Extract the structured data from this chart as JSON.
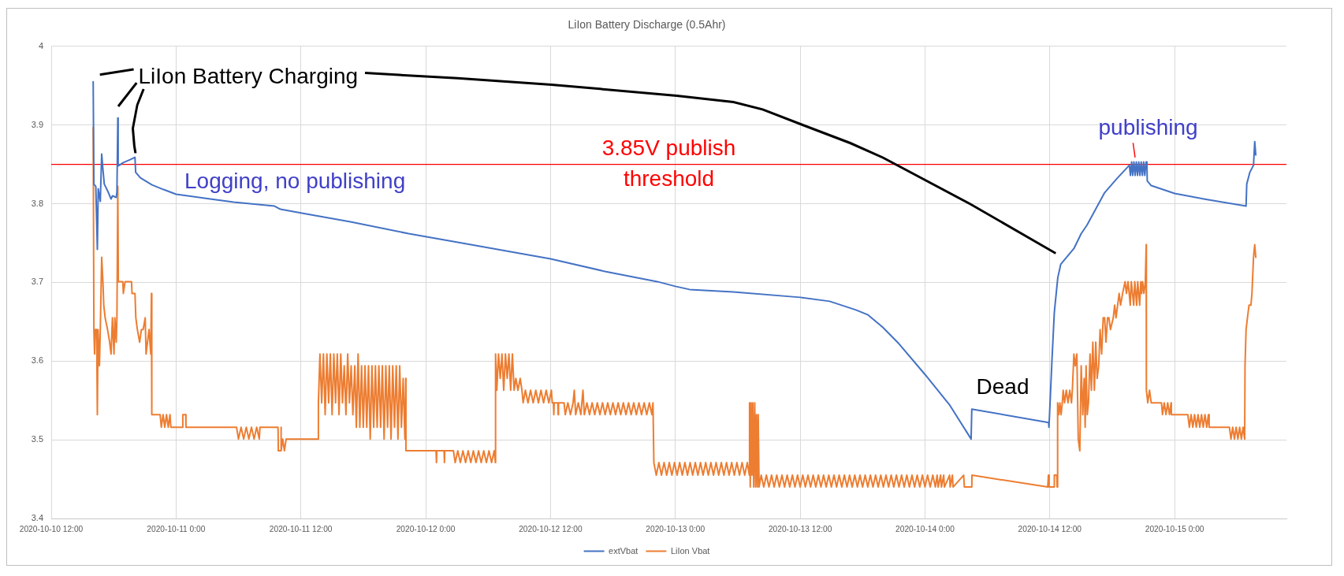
{
  "chart_data": {
    "type": "line",
    "title": "LiIon Battery Discharge (0.5Ahr)",
    "xlim": [
      "2020-10-10T12:00",
      "2020-10-15T10:45"
    ],
    "xticks": [
      {
        "value": "2020-10-10T12:00",
        "label": "2020-10-10 12:00"
      },
      {
        "value": "2020-10-11T00:00",
        "label": "2020-10-11 0:00"
      },
      {
        "value": "2020-10-11T12:00",
        "label": "2020-10-11 12:00"
      },
      {
        "value": "2020-10-12T00:00",
        "label": "2020-10-12 0:00"
      },
      {
        "value": "2020-10-12T12:00",
        "label": "2020-10-12 12:00"
      },
      {
        "value": "2020-10-13T00:00",
        "label": "2020-10-13 0:00"
      },
      {
        "value": "2020-10-13T12:00",
        "label": "2020-10-13 12:00"
      },
      {
        "value": "2020-10-14T00:00",
        "label": "2020-10-14 0:00"
      },
      {
        "value": "2020-10-14T12:00",
        "label": "2020-10-14 12:00"
      },
      {
        "value": "2020-10-15T00:00",
        "label": "2020-10-15 0:00"
      }
    ],
    "ylim": [
      3.4,
      4
    ],
    "yticks": [
      3.4,
      3.5,
      3.6,
      3.7,
      3.8,
      3.9,
      4
    ],
    "grid": true,
    "legend": "bottom",
    "marker": "none",
    "ref_lines": [
      {
        "axis": "y",
        "value": 3.85,
        "label": "3.85V publish threshold",
        "color": "#ff0000"
      }
    ],
    "annotations": [
      "LiIon Battery Charging",
      {
        "text": "Logging, no publishing",
        "x": "2020-10-11T11:30",
        "y": 3.789
      },
      {
        "text": "publishing",
        "x": "2020-10-14T20:10",
        "y": 3.853
      },
      {
        "text": "Dead",
        "x": "2020-10-14T08:00",
        "y": 3.531
      }
    ],
    "series": [
      {
        "name": "extVbat",
        "color": "#4472c4",
        "x": [
          "2020-10-10T16:02",
          "2020-10-10T16:06",
          "2020-10-10T16:17",
          "2020-10-10T16:26",
          "2020-10-10T16:31",
          "2020-10-10T16:43",
          "2020-10-10T16:51",
          "2020-10-10T16:58",
          "2020-10-10T17:06",
          "2020-10-10T17:28",
          "2020-10-10T17:45",
          "2020-10-10T17:53",
          "2020-10-10T18:15",
          "2020-10-10T18:19",
          "2020-10-10T18:24",
          "2020-10-10T18:26",
          "2020-10-10T18:53",
          "2020-10-10T19:35",
          "2020-10-10T20:03",
          "2020-10-10T20:07",
          "2020-10-10T20:34",
          "2020-10-10T21:41",
          "2020-10-10T22:48",
          "2020-10-11T00:00",
          "2020-10-11T02:44",
          "2020-10-11T05:32",
          "2020-10-11T09:28",
          "2020-10-11T10:02",
          "2020-10-11T12:06",
          "2020-10-11T16:46",
          "2020-10-11T22:22",
          "2020-10-12T03:05",
          "2020-10-12T12:00",
          "2020-10-12T17:14",
          "2020-10-12T22:16",
          "2020-10-13T00:00",
          "2020-10-13T01:22",
          "2020-10-13T05:35",
          "2020-10-13T12:00",
          "2020-10-13T14:50",
          "2020-10-13T17:22",
          "2020-10-13T18:29",
          "2020-10-13T19:56",
          "2020-10-13T21:30",
          "2020-10-14T00:00",
          "2020-10-14T02:23",
          "2020-10-14T04:26",
          "2020-10-14T04:30",
          "2020-10-14T11:53",
          "2020-10-14T11:55",
          "2020-10-14T11:58",
          "2020-10-14T12:13",
          "2020-10-14T12:26",
          "2020-10-14T12:46",
          "2020-10-14T13:03",
          "2020-10-14T14:19",
          "2020-10-14T15:01",
          "2020-10-14T15:35",
          "2020-10-14T17:16",
          "2020-10-14T18:23",
          "2020-10-14T19:39",
          "2020-10-14T19:45",
          "2020-10-14T19:52",
          "2020-10-14T19:58",
          "2020-10-14T20:05",
          "2020-10-14T20:12",
          "2020-10-14T20:19",
          "2020-10-14T20:26",
          "2020-10-14T20:33",
          "2020-10-14T20:40",
          "2020-10-14T20:47",
          "2020-10-14T20:54",
          "2020-10-14T21:01",
          "2020-10-14T21:08",
          "2020-10-14T21:15",
          "2020-10-14T21:20",
          "2020-10-14T21:22",
          "2020-10-14T21:45",
          "2020-10-15T00:00",
          "2020-10-15T02:48",
          "2020-10-15T06:52",
          "2020-10-15T06:56",
          "2020-10-15T07:14",
          "2020-10-15T07:35",
          "2020-10-15T07:42",
          "2020-10-15T07:48"
        ],
        "values": [
          3.955,
          3.825,
          3.822,
          3.742,
          3.819,
          3.803,
          3.863,
          3.844,
          3.825,
          3.815,
          3.806,
          3.81,
          3.808,
          3.815,
          3.909,
          3.848,
          3.852,
          3.856,
          3.859,
          3.84,
          3.833,
          3.824,
          3.818,
          3.812,
          3.807,
          3.802,
          3.797,
          3.793,
          3.788,
          3.777,
          3.762,
          3.751,
          3.73,
          3.714,
          3.701,
          3.695,
          3.691,
          3.688,
          3.681,
          3.676,
          3.665,
          3.659,
          3.643,
          3.622,
          3.583,
          3.544,
          3.501,
          3.539,
          3.522,
          3.516,
          3.53,
          3.604,
          3.662,
          3.706,
          3.723,
          3.743,
          3.762,
          3.773,
          3.814,
          3.831,
          3.849,
          3.836,
          3.853,
          3.836,
          3.853,
          3.836,
          3.853,
          3.836,
          3.853,
          3.836,
          3.853,
          3.836,
          3.853,
          3.836,
          3.853,
          3.853,
          3.829,
          3.823,
          3.813,
          3.806,
          3.797,
          3.825,
          3.84,
          3.849,
          3.879,
          3.862
        ]
      },
      {
        "name": "LiIon Vbat",
        "color": "#ed7d31",
        "x": [
          "2020-10-10T16:02",
          "2020-10-10T16:06",
          "2020-10-10T16:10",
          "2020-10-10T16:14",
          "2020-10-10T16:22",
          "2020-10-10T16:26",
          "2020-10-10T16:30",
          "2020-10-10T16:38",
          "2020-10-10T16:43",
          "2020-10-10T16:51",
          "2020-10-10T16:58",
          "2020-10-10T17:03",
          "2020-10-10T17:11",
          "2020-10-10T17:25",
          "2020-10-10T17:37",
          "2020-10-10T17:45",
          "2020-10-10T17:53",
          "2020-10-10T18:02",
          "2020-10-10T18:07",
          "2020-10-10T18:15",
          "2020-10-10T18:19",
          "2020-10-10T18:24",
          "2020-10-10T18:27",
          "2020-10-10T18:53",
          "2020-10-10T18:56",
          "2020-10-10T19:06",
          "2020-10-10T19:43",
          "2020-10-10T19:46",
          "2020-10-10T20:03",
          "2020-10-10T20:08",
          "2020-10-10T20:17",
          "2020-10-10T20:30",
          "2020-10-10T20:40",
          "2020-10-10T20:50",
          "2020-10-10T21:02",
          "2020-10-10T21:07",
          "2020-10-10T21:24",
          "2020-10-10T21:34",
          "2020-10-10T21:38",
          "2020-10-10T21:40",
          "2020-10-10T22:28",
          "2020-10-10T22:35",
          "2020-10-10T22:45",
          "2020-10-10T22:55",
          "2020-10-10T23:05",
          "2020-10-10T23:15",
          "2020-10-10T23:25",
          "2020-10-10T23:30",
          "2020-10-11T00:38",
          "2020-10-11T00:39",
          "2020-10-11T00:56",
          "2020-10-11T00:57",
          "2020-10-11T05:49",
          "2020-10-11T06:00",
          "2020-10-11T06:15",
          "2020-10-11T06:30",
          "2020-10-11T06:45",
          "2020-10-11T07:00",
          "2020-10-11T07:15",
          "2020-10-11T07:30",
          "2020-10-11T07:45",
          "2020-10-11T08:00",
          "2020-10-11T08:04",
          "2020-10-11T09:48",
          "2020-10-11T09:50",
          "2020-10-11T10:04",
          "2020-10-11T10:05",
          "2020-10-11T10:07",
          "2020-10-11T10:15",
          "2020-10-11T10:25",
          "2020-10-11T10:35",
          "2020-10-11T10:40",
          "2020-10-11T13:40",
          "2020-10-11T13:41",
          "2020-10-11T13:50",
          "2020-10-11T14:00",
          "2020-10-11T14:10",
          "2020-10-11T14:20",
          "2020-10-11T14:30",
          "2020-10-11T14:40",
          "2020-10-11T14:50",
          "2020-10-11T15:00",
          "2020-10-11T15:10",
          "2020-10-11T15:20",
          "2020-10-11T15:30",
          "2020-10-11T15:40",
          "2020-10-11T15:50",
          "2020-10-11T16:00",
          "2020-10-11T16:10",
          "2020-10-11T16:20",
          "2020-10-11T16:30",
          "2020-10-11T16:40",
          "2020-10-11T16:50",
          "2020-10-11T17:00",
          "2020-10-11T17:11",
          "2020-10-11T17:20",
          "2020-10-11T17:30",
          "2020-10-11T17:40",
          "2020-10-11T17:50",
          "2020-10-11T18:00",
          "2020-10-11T18:10",
          "2020-10-11T18:20",
          "2020-10-11T18:30",
          "2020-10-11T18:40",
          "2020-10-11T18:50",
          "2020-10-11T19:00",
          "2020-10-11T19:10",
          "2020-10-11T19:20",
          "2020-10-11T19:30",
          "2020-10-11T19:40",
          "2020-10-11T19:50",
          "2020-10-11T20:00",
          "2020-10-11T20:10",
          "2020-10-11T20:20",
          "2020-10-11T20:30",
          "2020-10-11T20:40",
          "2020-10-11T20:50",
          "2020-10-11T21:00",
          "2020-10-11T21:10",
          "2020-10-11T21:20",
          "2020-10-11T21:30",
          "2020-10-11T21:40",
          "2020-10-11T21:50",
          "2020-10-11T22:00",
          "2020-10-11T22:05",
          "2020-10-11T22:06",
          "2020-10-12T01:00",
          "2020-10-12T01:02",
          "2020-10-12T01:04",
          "2020-10-12T01:46",
          "2020-10-12T01:48",
          "2020-10-12T01:50",
          "2020-10-12T02:40",
          "2020-10-12T02:50",
          "2020-10-12T03:05",
          "2020-10-12T03:20",
          "2020-10-12T03:35",
          "2020-10-12T03:50",
          "2020-10-12T04:05",
          "2020-10-12T04:20",
          "2020-10-12T04:35",
          "2020-10-12T04:50",
          "2020-10-12T05:05",
          "2020-10-12T05:20",
          "2020-10-12T05:35",
          "2020-10-12T05:50",
          "2020-10-12T06:05",
          "2020-10-12T06:20",
          "2020-10-12T06:35",
          "2020-10-12T06:42",
          "2020-10-12T06:43",
          "2020-10-12T06:50",
          "2020-10-12T07:00",
          "2020-10-12T07:10",
          "2020-10-12T07:20",
          "2020-10-12T07:30",
          "2020-10-12T07:40",
          "2020-10-12T07:50",
          "2020-10-12T08:00",
          "2020-10-12T08:10",
          "2020-10-12T08:20",
          "2020-10-12T08:30",
          "2020-10-12T08:40",
          "2020-10-12T08:52",
          "2020-10-12T09:05",
          "2020-10-12T09:15",
          "2020-10-12T09:22",
          "2020-10-12T09:35",
          "2020-10-12T09:50",
          "2020-10-12T10:05",
          "2020-10-12T10:20",
          "2020-10-12T10:35",
          "2020-10-12T10:50",
          "2020-10-12T11:05",
          "2020-10-12T11:20",
          "2020-10-12T11:35",
          "2020-10-12T11:50",
          "2020-10-12T12:05",
          "2020-10-12T12:10",
          "2020-10-12T12:17",
          "2020-10-12T12:19",
          "2020-10-12T12:21",
          "2020-10-12T12:42",
          "2020-10-12T12:44",
          "2020-10-12T12:46",
          "2020-10-12T13:18",
          "2020-10-12T13:25",
          "2020-10-12T13:40",
          "2020-10-12T13:55",
          "2020-10-12T14:10",
          "2020-10-12T14:17",
          "2020-10-12T14:25",
          "2020-10-12T14:40",
          "2020-10-12T14:55",
          "2020-10-12T15:07",
          "2020-10-12T15:15",
          "2020-10-12T15:30",
          "2020-10-12T15:45",
          "2020-10-12T16:00",
          "2020-10-12T16:15",
          "2020-10-12T16:30",
          "2020-10-12T16:45",
          "2020-10-12T17:00",
          "2020-10-12T17:15",
          "2020-10-12T17:30",
          "2020-10-12T17:45",
          "2020-10-12T18:00",
          "2020-10-12T18:15",
          "2020-10-12T18:30",
          "2020-10-12T18:45",
          "2020-10-12T19:00",
          "2020-10-12T19:15",
          "2020-10-12T19:30",
          "2020-10-12T19:45",
          "2020-10-12T20:00",
          "2020-10-12T20:15",
          "2020-10-12T20:30",
          "2020-10-12T20:45",
          "2020-10-12T21:00",
          "2020-10-12T21:15",
          "2020-10-12T21:30",
          "2020-10-12T21:45",
          "2020-10-12T21:51",
          "2020-10-12T21:56",
          "2020-10-12T22:10",
          "2020-10-12T22:25",
          "2020-10-12T22:40",
          "2020-10-12T22:55",
          "2020-10-12T23:10",
          "2020-10-12T23:25",
          "2020-10-12T23:40",
          "2020-10-12T23:55",
          "2020-10-13T00:10",
          "2020-10-13T00:25",
          "2020-10-13T00:40",
          "2020-10-13T00:55",
          "2020-10-13T01:10",
          "2020-10-13T01:25",
          "2020-10-13T01:40",
          "2020-10-13T01:55",
          "2020-10-13T02:10",
          "2020-10-13T02:25",
          "2020-10-13T02:40",
          "2020-10-13T02:55",
          "2020-10-13T03:10",
          "2020-10-13T03:25",
          "2020-10-13T03:40",
          "2020-10-13T03:55",
          "2020-10-13T04:10",
          "2020-10-13T04:25",
          "2020-10-13T04:40",
          "2020-10-13T04:55",
          "2020-10-13T05:10",
          "2020-10-13T05:25",
          "2020-10-13T05:40",
          "2020-10-13T05:55",
          "2020-10-13T06:10",
          "2020-10-13T06:25",
          "2020-10-13T06:40",
          "2020-10-13T06:55",
          "2020-10-13T07:07",
          "2020-10-13T07:08",
          "2020-10-13T07:12",
          "2020-10-13T07:17",
          "2020-10-13T07:22",
          "2020-10-13T07:27",
          "2020-10-13T07:32",
          "2020-10-13T07:38",
          "2020-10-13T07:43",
          "2020-10-13T07:48",
          "2020-10-13T07:53",
          "2020-10-13T07:58",
          "2020-10-13T08:03",
          "2020-10-13T08:15",
          "2020-10-13T08:30",
          "2020-10-13T08:45",
          "2020-10-13T09:00",
          "2020-10-13T09:15",
          "2020-10-13T09:30",
          "2020-10-13T09:45",
          "2020-10-13T10:00",
          "2020-10-13T10:15",
          "2020-10-13T10:30",
          "2020-10-13T10:45",
          "2020-10-13T11:00",
          "2020-10-13T11:15",
          "2020-10-13T11:30",
          "2020-10-13T11:45",
          "2020-10-13T12:00",
          "2020-10-13T12:15",
          "2020-10-13T12:30",
          "2020-10-13T12:45",
          "2020-10-13T13:00",
          "2020-10-13T13:15",
          "2020-10-13T13:30",
          "2020-10-13T13:45",
          "2020-10-13T14:00",
          "2020-10-13T14:15",
          "2020-10-13T14:30",
          "2020-10-13T14:45",
          "2020-10-13T15:00",
          "2020-10-13T15:15",
          "2020-10-13T15:30",
          "2020-10-13T15:45",
          "2020-10-13T16:00",
          "2020-10-13T16:15",
          "2020-10-13T16:30",
          "2020-10-13T16:45",
          "2020-10-13T17:00",
          "2020-10-13T17:15",
          "2020-10-13T17:30",
          "2020-10-13T17:45",
          "2020-10-13T18:00",
          "2020-10-13T18:15",
          "2020-10-13T18:30",
          "2020-10-13T18:45",
          "2020-10-13T19:00",
          "2020-10-13T19:15",
          "2020-10-13T19:30",
          "2020-10-13T19:45",
          "2020-10-13T20:00",
          "2020-10-13T20:15",
          "2020-10-13T20:30",
          "2020-10-13T20:45",
          "2020-10-13T21:00",
          "2020-10-13T21:15",
          "2020-10-13T21:30",
          "2020-10-13T21:45",
          "2020-10-13T22:00",
          "2020-10-13T22:15",
          "2020-10-13T22:30",
          "2020-10-13T22:45",
          "2020-10-13T23:00",
          "2020-10-13T23:15",
          "2020-10-13T23:30",
          "2020-10-13T23:45",
          "2020-10-14T00:00",
          "2020-10-14T00:15",
          "2020-10-14T00:30",
          "2020-10-14T00:45",
          "2020-10-14T01:00",
          "2020-10-14T01:10",
          "2020-10-14T01:16",
          "2020-10-14T01:30",
          "2020-10-14T01:35",
          "2020-10-14T01:48",
          "2020-10-14T01:52",
          "2020-10-14T02:22",
          "2020-10-14T02:25",
          "2020-10-14T02:38",
          "2020-10-14T02:42",
          "2020-10-14T03:43",
          "2020-10-14T03:47",
          "2020-10-14T04:30",
          "2020-10-14T04:31",
          "2020-10-14T11:48",
          "2020-10-14T11:52",
          "2020-10-14T11:56",
          "2020-10-14T12:24",
          "2020-10-14T12:26",
          "2020-10-14T12:40",
          "2020-10-14T12:42",
          "2020-10-14T12:45",
          "2020-10-14T12:52",
          "2020-10-14T12:58",
          "2020-10-14T13:05",
          "2020-10-14T13:12",
          "2020-10-14T13:17",
          "2020-10-14T13:25",
          "2020-10-14T13:35",
          "2020-10-14T13:45",
          "2020-10-14T13:55",
          "2020-10-14T14:05",
          "2020-10-14T14:10",
          "2020-10-14T14:19",
          "2020-10-14T14:27",
          "2020-10-14T14:36",
          "2020-10-14T14:44",
          "2020-10-14T14:53",
          "2020-10-14T15:01",
          "2020-10-14T15:10",
          "2020-10-14T15:18",
          "2020-10-14T15:24",
          "2020-10-14T15:29",
          "2020-10-14T15:36",
          "2020-10-14T15:43",
          "2020-10-14T15:52",
          "2020-10-14T16:00",
          "2020-10-14T16:08",
          "2020-10-14T16:17",
          "2020-10-14T16:25",
          "2020-10-14T16:33",
          "2020-10-14T16:42",
          "2020-10-14T16:50",
          "2020-10-14T16:59",
          "2020-10-14T17:08",
          "2020-10-14T17:16",
          "2020-10-14T17:24",
          "2020-10-14T17:33",
          "2020-10-14T17:41",
          "2020-10-14T17:50",
          "2020-10-14T18:06",
          "2020-10-14T18:14",
          "2020-10-14T18:22",
          "2020-10-14T18:31",
          "2020-10-14T18:40",
          "2020-10-14T18:48",
          "2020-10-14T19:00",
          "2020-10-14T19:14",
          "2020-10-14T19:22",
          "2020-10-14T19:31",
          "2020-10-14T19:38",
          "2020-10-14T19:44",
          "2020-10-14T19:50",
          "2020-10-14T19:57",
          "2020-10-14T20:04",
          "2020-10-14T20:10",
          "2020-10-14T20:16",
          "2020-10-14T20:21",
          "2020-10-14T20:27",
          "2020-10-14T20:33",
          "2020-10-14T20:38",
          "2020-10-14T20:45",
          "2020-10-14T20:50",
          "2020-10-14T20:55",
          "2020-10-14T21:03",
          "2020-10-14T21:11",
          "2020-10-14T21:16",
          "2020-10-14T21:17",
          "2020-10-14T21:25",
          "2020-10-14T21:35",
          "2020-10-14T21:45",
          "2020-10-14T22:44",
          "2020-10-14T22:50",
          "2020-10-14T23:00",
          "2020-10-14T23:10",
          "2020-10-14T23:20",
          "2020-10-14T23:30",
          "2020-10-14T23:40",
          "2020-10-14T23:41",
          "2020-10-15T01:16",
          "2020-10-15T01:25",
          "2020-10-15T01:35",
          "2020-10-15T01:45",
          "2020-10-15T01:55",
          "2020-10-15T02:05",
          "2020-10-15T02:15",
          "2020-10-15T02:25",
          "2020-10-15T02:35",
          "2020-10-15T02:45",
          "2020-10-15T02:55",
          "2020-10-15T03:05",
          "2020-10-15T03:15",
          "2020-10-15T03:19",
          "2020-10-15T05:16",
          "2020-10-15T05:25",
          "2020-10-15T05:35",
          "2020-10-15T05:45",
          "2020-10-15T05:55",
          "2020-10-15T06:05",
          "2020-10-15T06:15",
          "2020-10-15T06:25",
          "2020-10-15T06:35",
          "2020-10-15T06:44",
          "2020-10-15T06:46",
          "2020-10-15T06:52",
          "2020-10-15T07:00",
          "2020-10-15T07:09",
          "2020-10-15T07:20",
          "2020-10-15T07:26",
          "2020-10-15T07:35",
          "2020-10-15T07:42",
          "2020-10-15T07:48"
        ],
        "values": [
          3.897,
          3.64,
          3.609,
          3.64,
          3.64,
          3.532,
          3.64,
          3.594,
          3.64,
          3.732,
          3.701,
          3.671,
          3.655,
          3.64,
          3.624,
          3.609,
          3.655,
          3.609,
          3.655,
          3.624,
          3.655,
          3.822,
          3.701,
          3.701,
          3.686,
          3.701,
          3.701,
          3.686,
          3.686,
          3.655,
          3.64,
          3.624,
          3.64,
          3.64,
          3.655,
          3.609,
          3.64,
          3.609,
          3.686,
          3.532,
          3.532,
          3.516,
          3.532,
          3.516,
          3.532,
          3.516,
          3.532,
          3.516,
          3.516,
          3.532,
          3.532,
          3.516,
          3.516,
          3.501,
          3.516,
          3.501,
          3.516,
          3.501,
          3.516,
          3.501,
          3.516,
          3.501,
          3.516,
          3.516,
          3.486,
          3.486,
          3.516,
          3.486,
          3.501,
          3.486,
          3.501,
          3.501,
          3.501,
          3.547,
          3.609,
          3.547,
          3.609,
          3.532,
          3.609,
          3.547,
          3.609,
          3.532,
          3.609,
          3.547,
          3.609,
          3.532,
          3.609,
          3.547,
          3.594,
          3.532,
          3.609,
          3.547,
          3.594,
          3.532,
          3.594,
          3.516,
          3.609,
          3.516,
          3.594,
          3.516,
          3.594,
          3.516,
          3.594,
          3.501,
          3.594,
          3.516,
          3.594,
          3.516,
          3.594,
          3.516,
          3.594,
          3.501,
          3.594,
          3.516,
          3.594,
          3.501,
          3.594,
          3.516,
          3.594,
          3.501,
          3.594,
          3.516,
          3.578,
          3.501,
          3.578,
          3.486,
          3.486,
          3.471,
          3.486,
          3.486,
          3.471,
          3.486,
          3.486,
          3.471,
          3.486,
          3.471,
          3.486,
          3.471,
          3.486,
          3.471,
          3.486,
          3.471,
          3.486,
          3.471,
          3.486,
          3.471,
          3.486,
          3.471,
          3.486,
          3.471,
          3.609,
          3.563,
          3.609,
          3.578,
          3.609,
          3.563,
          3.609,
          3.578,
          3.609,
          3.563,
          3.609,
          3.563,
          3.578,
          3.563,
          3.578,
          3.563,
          3.547,
          3.563,
          3.547,
          3.563,
          3.547,
          3.563,
          3.547,
          3.563,
          3.547,
          3.563,
          3.547,
          3.563,
          3.547,
          3.547,
          3.532,
          3.547,
          3.547,
          3.532,
          3.547,
          3.547,
          3.532,
          3.547,
          3.532,
          3.547,
          3.563,
          3.532,
          3.547,
          3.532,
          3.563,
          3.532,
          3.547,
          3.532,
          3.547,
          3.532,
          3.547,
          3.532,
          3.547,
          3.532,
          3.547,
          3.532,
          3.547,
          3.532,
          3.547,
          3.532,
          3.547,
          3.532,
          3.547,
          3.532,
          3.547,
          3.532,
          3.547,
          3.532,
          3.547,
          3.532,
          3.547,
          3.532,
          3.547,
          3.471,
          3.455,
          3.471,
          3.455,
          3.471,
          3.455,
          3.471,
          3.455,
          3.471,
          3.455,
          3.471,
          3.455,
          3.471,
          3.455,
          3.471,
          3.455,
          3.471,
          3.455,
          3.471,
          3.455,
          3.471,
          3.455,
          3.471,
          3.455,
          3.471,
          3.455,
          3.471,
          3.455,
          3.471,
          3.455,
          3.471,
          3.455,
          3.471,
          3.455,
          3.471,
          3.455,
          3.471,
          3.455,
          3.547,
          3.44,
          3.547,
          3.455,
          3.547,
          3.44,
          3.547,
          3.44,
          3.532,
          3.44,
          3.532,
          3.44,
          3.455,
          3.44,
          3.455,
          3.44,
          3.455,
          3.44,
          3.455,
          3.44,
          3.455,
          3.44,
          3.455,
          3.44,
          3.455,
          3.44,
          3.455,
          3.44,
          3.455,
          3.44,
          3.455,
          3.44,
          3.455,
          3.44,
          3.455,
          3.44,
          3.455,
          3.44,
          3.455,
          3.44,
          3.455,
          3.44,
          3.455,
          3.44,
          3.455,
          3.44,
          3.455,
          3.44,
          3.455,
          3.44,
          3.455,
          3.44,
          3.455,
          3.44,
          3.455,
          3.44,
          3.455,
          3.44,
          3.455,
          3.44,
          3.455,
          3.44,
          3.455,
          3.44,
          3.455,
          3.44,
          3.455,
          3.44,
          3.455,
          3.44,
          3.455,
          3.44,
          3.455,
          3.44,
          3.455,
          3.44,
          3.455,
          3.44,
          3.455,
          3.44,
          3.455,
          3.44,
          3.455,
          3.44,
          3.455,
          3.44,
          3.455,
          3.44,
          3.455,
          3.44,
          3.455,
          3.44,
          3.44,
          3.455,
          3.44,
          3.455,
          3.44,
          3.44,
          3.455,
          3.455,
          3.44,
          3.547,
          3.532,
          3.547,
          3.532,
          3.547,
          3.563,
          3.547,
          3.563,
          3.547,
          3.563,
          3.547,
          3.563,
          3.609,
          3.594,
          3.609,
          3.501,
          3.486,
          3.594,
          3.532,
          3.578,
          3.516,
          3.594,
          3.532,
          3.547,
          3.609,
          3.563,
          3.624,
          3.563,
          3.624,
          3.578,
          3.594,
          3.64,
          3.609,
          3.655,
          3.655,
          3.624,
          3.655,
          3.655,
          3.64,
          3.655,
          3.671,
          3.655,
          3.671,
          3.686,
          3.671,
          3.686,
          3.701,
          3.686,
          3.701,
          3.686,
          3.671,
          3.701,
          3.686,
          3.671,
          3.701,
          3.686,
          3.671,
          3.701,
          3.686,
          3.671,
          3.701,
          3.686,
          3.701,
          3.686,
          3.701,
          3.748,
          3.563,
          3.547,
          3.563,
          3.547,
          3.547,
          3.532,
          3.547,
          3.532,
          3.547,
          3.532,
          3.547,
          3.532,
          3.532,
          3.516,
          3.532,
          3.516,
          3.532,
          3.516,
          3.532,
          3.516,
          3.532,
          3.516,
          3.532,
          3.516,
          3.532,
          3.516,
          3.516,
          3.501,
          3.516,
          3.501,
          3.516,
          3.501,
          3.516,
          3.501,
          3.516,
          3.501,
          3.594,
          3.64,
          3.655,
          3.671,
          3.671,
          3.686,
          3.732,
          3.748,
          3.732
        ]
      }
    ]
  }
}
